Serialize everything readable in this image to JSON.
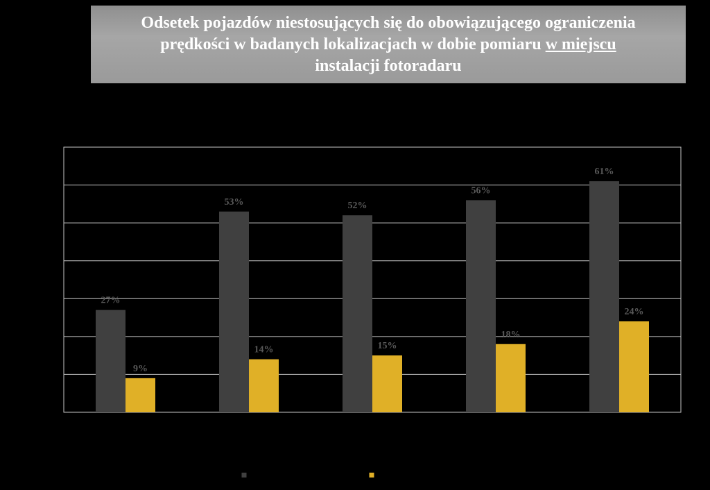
{
  "chart_data": {
    "type": "bar",
    "title": {
      "line1": "Odsetek pojazdów niestosujących się do obowiązującego ograniczenia",
      "line2_prefix": "prędkości w badanych lokalizacjach w dobie pomiaru ",
      "line2_underlined": "w miejscu",
      "line3": "instalacji fotoradaru"
    },
    "categories": [
      "",
      "",
      "",
      "",
      ""
    ],
    "series": [
      {
        "values": [
          27,
          53,
          52,
          56,
          61
        ],
        "labels": [
          "27%",
          "53%",
          "52%",
          "56%",
          "61%"
        ],
        "color": "#404040"
      },
      {
        "values": [
          9,
          14,
          15,
          18,
          24
        ],
        "labels": [
          "9%",
          "14%",
          "15%",
          "18%",
          "24%"
        ],
        "color": "#e0b027"
      }
    ],
    "ylim": [
      0,
      70
    ],
    "gridlines": [
      0,
      10,
      20,
      30,
      40,
      50,
      60,
      70
    ],
    "grid": true,
    "legend": "bottom",
    "label_color": "#595959"
  }
}
